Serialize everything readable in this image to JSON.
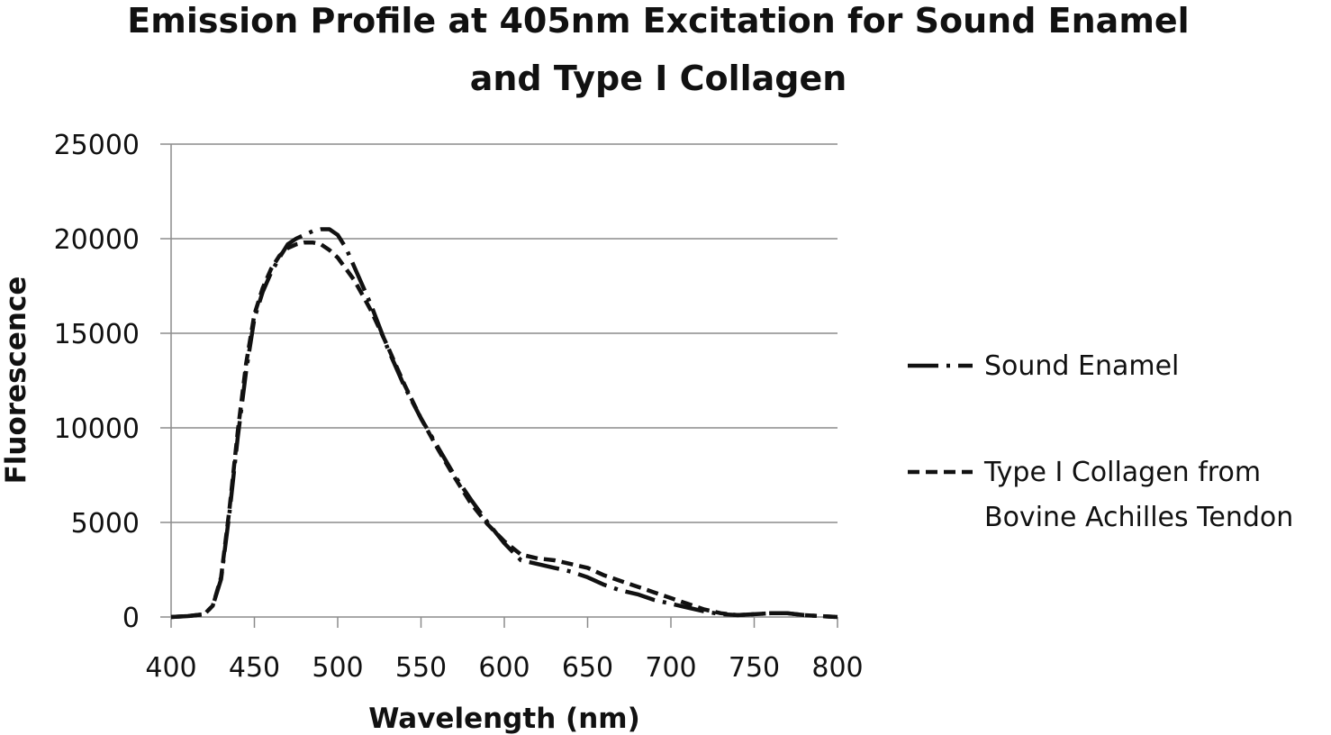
{
  "chart_data": {
    "type": "line",
    "title_lines": [
      "Emission Profile at 405nm Excitation for Sound Enamel",
      "and Type I Collagen"
    ],
    "xlabel": "Wavelength (nm)",
    "ylabel": "Fluorescence",
    "xlim": [
      400,
      800
    ],
    "ylim": [
      0,
      25000
    ],
    "xticks": [
      400,
      450,
      500,
      550,
      600,
      650,
      700,
      750,
      800
    ],
    "yticks": [
      0,
      5000,
      10000,
      15000,
      20000,
      25000
    ],
    "grid": "horizontal",
    "legend_position": "right",
    "series": [
      {
        "name": "Sound Enamel",
        "style": "dash-dot",
        "color": "#111111",
        "x": [
          400,
          410,
          420,
          425,
          430,
          435,
          440,
          445,
          450,
          455,
          460,
          465,
          470,
          475,
          480,
          485,
          490,
          495,
          500,
          505,
          510,
          515,
          520,
          530,
          540,
          550,
          560,
          570,
          580,
          590,
          600,
          610,
          620,
          630,
          640,
          650,
          660,
          670,
          680,
          690,
          700,
          710,
          720,
          730,
          740,
          750,
          760,
          770,
          780,
          790,
          800
        ],
        "y": [
          0,
          50,
          150,
          600,
          2000,
          5500,
          9500,
          13000,
          15800,
          17200,
          18200,
          19000,
          19700,
          20000,
          20200,
          20400,
          20500,
          20500,
          20200,
          19500,
          18500,
          17500,
          16500,
          14200,
          12200,
          10500,
          9000,
          7500,
          6200,
          5000,
          3900,
          3000,
          2800,
          2600,
          2400,
          2100,
          1700,
          1400,
          1200,
          900,
          700,
          500,
          300,
          150,
          100,
          150,
          200,
          200,
          100,
          50,
          0
        ]
      },
      {
        "name": "Type I Collagen from Bovine Achilles Tendon",
        "style": "dashed",
        "color": "#111111",
        "x": [
          400,
          410,
          420,
          425,
          430,
          435,
          440,
          445,
          450,
          455,
          460,
          465,
          470,
          475,
          480,
          485,
          490,
          495,
          500,
          505,
          510,
          515,
          520,
          530,
          540,
          550,
          560,
          570,
          580,
          590,
          600,
          610,
          620,
          630,
          640,
          650,
          660,
          670,
          680,
          690,
          700,
          710,
          720,
          730,
          740,
          750,
          760,
          770,
          780,
          790,
          800
        ],
        "y": [
          0,
          50,
          150,
          600,
          2100,
          5700,
          9800,
          13400,
          16000,
          17400,
          18400,
          19100,
          19500,
          19700,
          19800,
          19800,
          19700,
          19400,
          19000,
          18400,
          17800,
          17000,
          16200,
          14300,
          12300,
          10500,
          8900,
          7400,
          6000,
          4900,
          4000,
          3300,
          3100,
          3000,
          2800,
          2600,
          2200,
          1900,
          1600,
          1300,
          1000,
          700,
          400,
          200,
          100,
          150,
          200,
          200,
          100,
          50,
          0
        ]
      }
    ],
    "legend": [
      {
        "lines": [
          "Sound Enamel"
        ]
      },
      {
        "lines": [
          "Type I Collagen from",
          "Bovine Achilles Tendon"
        ]
      }
    ]
  }
}
